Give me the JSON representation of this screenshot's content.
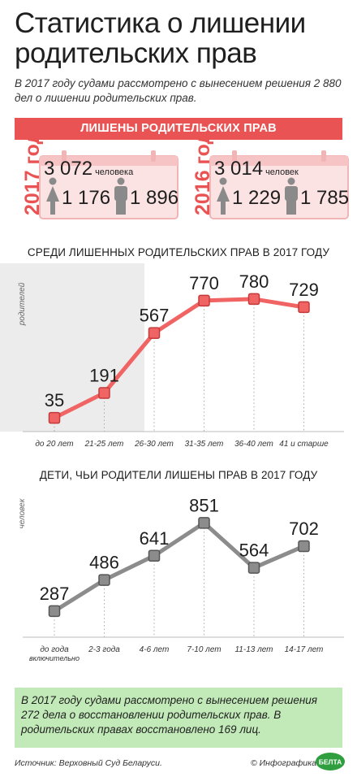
{
  "title": "Статистика о лишении родительских прав",
  "intro": "В 2017 году судами рассмотрено с вынесением решения 2 880 дел о лишении родительских прав.",
  "banner": "ЛИШЕНЫ РОДИТЕЛЬСКИХ ПРАВ",
  "years": [
    {
      "year": "2017 год",
      "total": "3 072",
      "total_unit": "человека",
      "female": "1 176",
      "male": "1 896"
    },
    {
      "year": "2016 год",
      "total": "3 014",
      "total_unit": "человек",
      "female": "1 229",
      "male": "1 785"
    }
  ],
  "colors": {
    "accent": "#ea5353",
    "line1": "#f06464",
    "line2": "#8c8c8c",
    "green": "#c2eab8",
    "shade": "#ececec"
  },
  "chart_data": [
    {
      "type": "line",
      "title": "СРЕДИ ЛИШЕННЫХ РОДИТЕЛЬСКИХ ПРАВ В 2017 ГОДУ",
      "ylabel": "родителей",
      "categories": [
        "до 20 лет",
        "21-25 лет",
        "26-30 лет",
        "31-35 лет",
        "36-40 лет",
        "41 и старше"
      ],
      "values": [
        35,
        191,
        567,
        770,
        780,
        729
      ],
      "ylim": [
        0,
        800
      ]
    },
    {
      "type": "line",
      "title": "ДЕТИ, ЧЬИ РОДИТЕЛИ ЛИШЕНЫ ПРАВ В 2017 ГОДУ",
      "ylabel": "человек",
      "categories": [
        "до года",
        "2-3 года",
        "4-6 лет",
        "7-10 лет",
        "11-13 лет",
        "14-17 лет"
      ],
      "category_notes": [
        "включительно",
        "",
        "",
        "",
        "",
        ""
      ],
      "values": [
        287,
        486,
        641,
        851,
        564,
        702
      ],
      "ylim": [
        0,
        900
      ]
    }
  ],
  "note": "В 2017 году судами рассмотрено с вынесением решения 272 дела о восстановлении родительских прав. В родительских правах восстановлено 169 лиц.",
  "source": "Источник: Верховный Суд Беларуси.",
  "credit": "© Инфографика",
  "logo_text": "БЕЛТА"
}
